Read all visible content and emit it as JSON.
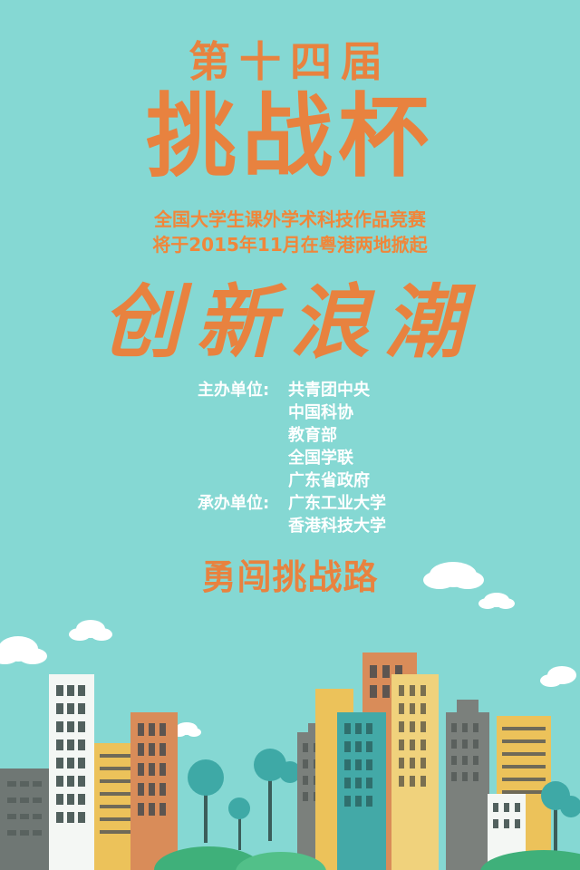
{
  "edition": "第十四届",
  "cup_name": "挑战杯",
  "subtitle": {
    "line1": "全国大学生课外学术科技作品竞赛",
    "line2": "将于2015年11月在粤港两地掀起"
  },
  "slogan": "创新浪潮",
  "organizers": {
    "host_label": "主办单位:",
    "hosts": [
      "共青团中央",
      "中国科协",
      "教育部",
      "全国学联",
      "广东省政府"
    ],
    "undertaker_label": "承办单位:",
    "undertakers": [
      "广东工业大学",
      "香港科技大学"
    ]
  },
  "motto": "勇闯挑战路",
  "colors": {
    "background": "#85d8d3",
    "title_orange": "#e8823f",
    "text_white": "#ffffff"
  }
}
